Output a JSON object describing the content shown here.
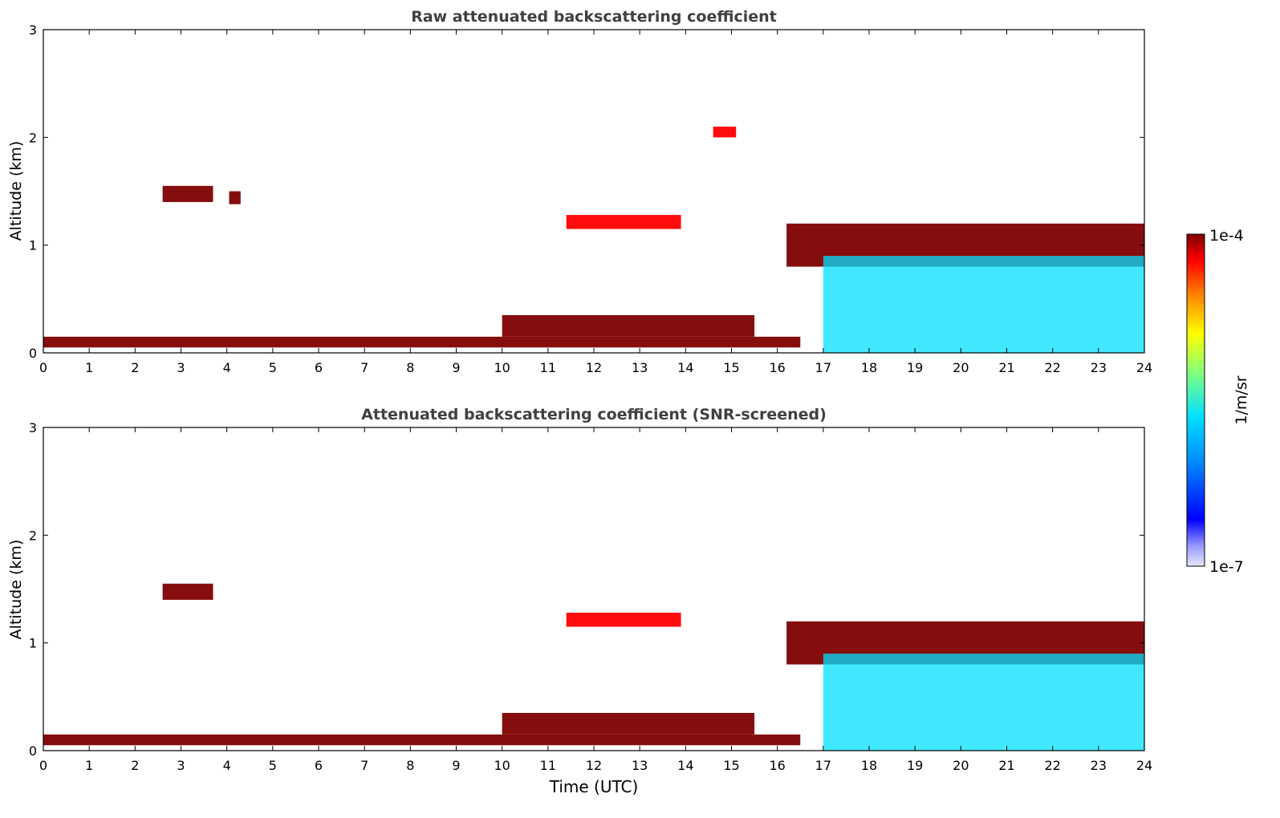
{
  "chart_data": [
    {
      "type": "heatmap",
      "title": "Raw attenuated backscattering coefficient",
      "xlabel": "",
      "ylabel": "Altitude (km)",
      "xlim": [
        0,
        24
      ],
      "ylim": [
        0,
        3
      ],
      "x_ticks": [
        "0",
        "1",
        "2",
        "3",
        "4",
        "5",
        "6",
        "7",
        "8",
        "9",
        "10",
        "11",
        "12",
        "13",
        "14",
        "15",
        "16",
        "17",
        "18",
        "19",
        "20",
        "21",
        "22",
        "23",
        "24"
      ],
      "y_ticks": [
        "0",
        "1",
        "2",
        "3"
      ],
      "layers": [
        {
          "feature": "surface-layer",
          "x": [
            0,
            16.5
          ],
          "y": [
            0.05,
            0.15
          ],
          "level": 1.0
        },
        {
          "feature": "boundary-layer-top",
          "x": [
            10,
            15.5
          ],
          "y": [
            0.15,
            0.35
          ],
          "level": 0.95
        },
        {
          "feature": "cloud",
          "x": [
            2.6,
            3.7
          ],
          "y": [
            1.4,
            1.55
          ],
          "level": 1.0
        },
        {
          "feature": "cloud",
          "x": [
            4.05,
            4.3
          ],
          "y": [
            1.38,
            1.5
          ],
          "level": 0.95
        },
        {
          "feature": "cloud",
          "x": [
            11.4,
            13.9
          ],
          "y": [
            1.15,
            1.28
          ],
          "level": 0.85
        },
        {
          "feature": "cloud",
          "x": [
            14.6,
            15.1
          ],
          "y": [
            2.0,
            2.1
          ],
          "level": 0.9
        },
        {
          "feature": "cloud-layer",
          "x": [
            16.2,
            24
          ],
          "y": [
            0.8,
            1.2
          ],
          "level": 1.0
        },
        {
          "feature": "precipitation-columns",
          "x": [
            17.0,
            24
          ],
          "y": [
            0,
            0.9
          ],
          "level": 0.45
        }
      ]
    },
    {
      "type": "heatmap",
      "title": "Attenuated backscattering coefficient (SNR-screened)",
      "xlabel": "Time (UTC)",
      "ylabel": "Altitude (km)",
      "xlim": [
        0,
        24
      ],
      "ylim": [
        0,
        3
      ],
      "x_ticks": [
        "0",
        "1",
        "2",
        "3",
        "4",
        "5",
        "6",
        "7",
        "8",
        "9",
        "10",
        "11",
        "12",
        "13",
        "14",
        "15",
        "16",
        "17",
        "18",
        "19",
        "20",
        "21",
        "22",
        "23",
        "24"
      ],
      "y_ticks": [
        "0",
        "1",
        "2",
        "3"
      ],
      "layers": [
        {
          "feature": "surface-layer",
          "x": [
            0,
            16.5
          ],
          "y": [
            0.05,
            0.15
          ],
          "level": 1.0
        },
        {
          "feature": "boundary-layer-top",
          "x": [
            10,
            15.5
          ],
          "y": [
            0.15,
            0.35
          ],
          "level": 0.95
        },
        {
          "feature": "cloud",
          "x": [
            2.6,
            3.7
          ],
          "y": [
            1.4,
            1.55
          ],
          "level": 1.0
        },
        {
          "feature": "cloud",
          "x": [
            11.4,
            13.9
          ],
          "y": [
            1.15,
            1.28
          ],
          "level": 0.85
        },
        {
          "feature": "cloud-layer",
          "x": [
            16.2,
            24
          ],
          "y": [
            0.8,
            1.2
          ],
          "level": 1.0
        },
        {
          "feature": "precipitation-columns",
          "x": [
            17.0,
            24
          ],
          "y": [
            0,
            0.9
          ],
          "level": 0.45
        }
      ]
    }
  ],
  "colorbar": {
    "label": "1/m/sr",
    "max_label": "1e-4",
    "min_label": "1e-7",
    "colors": [
      "#e6e6fa",
      "#9a9aff",
      "#0000ff",
      "#0080ff",
      "#00e0ff",
      "#80ff80",
      "#ffff00",
      "#ff8000",
      "#ff0000",
      "#800000"
    ]
  }
}
